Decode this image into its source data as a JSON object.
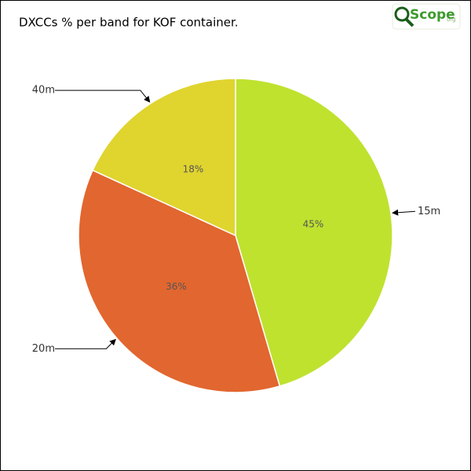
{
  "chart_data": {
    "type": "pie",
    "title": "DXCCs % per band for KOF container.",
    "logo": "Scope",
    "logo_suffix": "org",
    "categories": [
      "15m",
      "20m",
      "40m"
    ],
    "values": [
      45,
      36,
      18
    ],
    "value_labels": [
      "45%",
      "36%",
      "18%"
    ],
    "colors": [
      "#bfe22f",
      "#e2662f",
      "#e0d42f"
    ]
  }
}
